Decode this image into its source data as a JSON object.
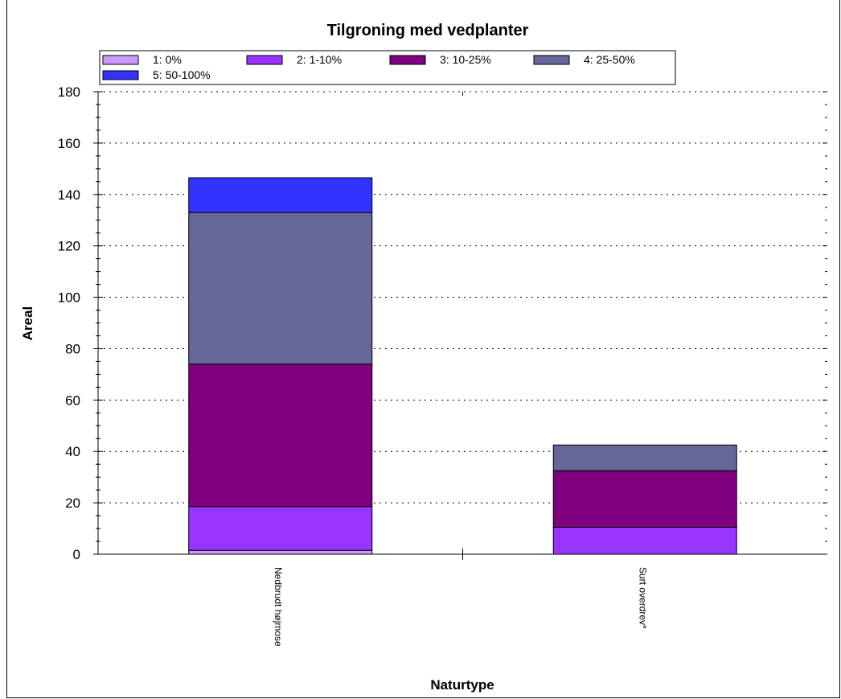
{
  "chart_data": {
    "type": "bar",
    "stacked": true,
    "title": "Tilgroning med vedplanter",
    "xlabel": "Naturtype",
    "ylabel": "Areal",
    "ylim": [
      0,
      180
    ],
    "yticks": [
      0,
      20,
      40,
      60,
      80,
      100,
      120,
      140,
      160,
      180
    ],
    "grid": true,
    "legend_position": "top",
    "categories": [
      "Nedbrudt højmose",
      "Surt overdrev*"
    ],
    "series": [
      {
        "name": "1: 0%",
        "color": "#cc99ff",
        "values": [
          1.5,
          0
        ]
      },
      {
        "name": "2: 1-10%",
        "color": "#9933ff",
        "values": [
          17,
          10.5
        ]
      },
      {
        "name": "3: 10-25%",
        "color": "#800080",
        "values": [
          55.5,
          22
        ]
      },
      {
        "name": "4: 25-50%",
        "color": "#666699",
        "values": [
          59,
          10
        ]
      },
      {
        "name": "5: 50-100%",
        "color": "#3333ff",
        "values": [
          13.5,
          0
        ]
      }
    ]
  }
}
